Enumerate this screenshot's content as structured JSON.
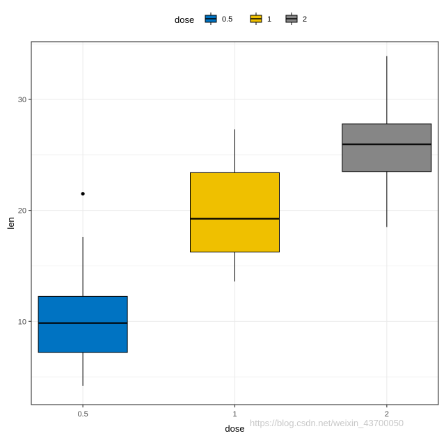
{
  "chart_data": {
    "type": "boxplot",
    "title": "",
    "xlabel": "dose",
    "ylabel": "len",
    "categories": [
      "0.5",
      "1",
      "2"
    ],
    "ylim": [
      2.5,
      35.2
    ],
    "yticks": [
      10,
      20,
      30
    ],
    "grid": true,
    "legend": {
      "title": "dose",
      "position": "top",
      "entries": [
        "0.5",
        "1",
        "2"
      ]
    },
    "series": [
      {
        "category": "0.5",
        "whisker_low": 4.2,
        "q1": 7.2,
        "median": 9.85,
        "q3": 12.25,
        "whisker_high": 17.6,
        "outliers": [
          21.5
        ],
        "color": "#0073C2"
      },
      {
        "category": "1",
        "whisker_low": 13.6,
        "q1": 16.25,
        "median": 19.25,
        "q3": 23.4,
        "whisker_high": 27.3,
        "outliers": [],
        "color": "#EFC000"
      },
      {
        "category": "2",
        "whisker_low": 18.5,
        "q1": 23.5,
        "median": 25.95,
        "q3": 27.8,
        "whisker_high": 33.9,
        "outliers": [],
        "color": "#868686"
      }
    ]
  },
  "watermark": "https://blog.csdn.net/weixin_43700050"
}
